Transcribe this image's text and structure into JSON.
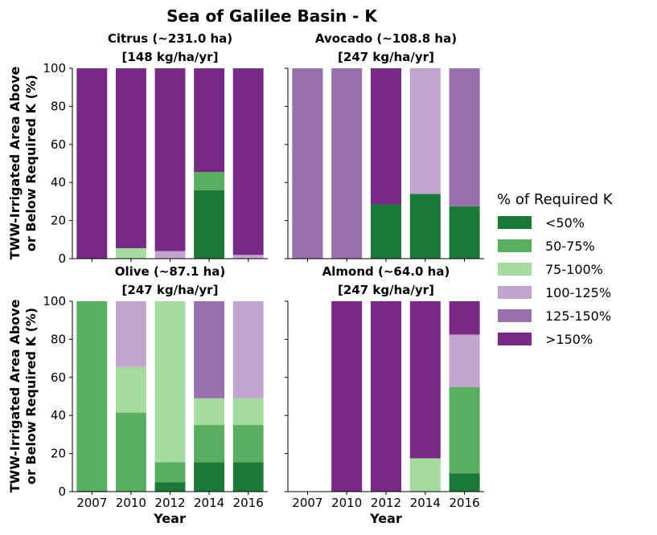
{
  "chart_data": {
    "type": "bar",
    "stacked": true,
    "title": "Sea of Galilee Basin - K",
    "ylabel_line1": "TWW-Irrigated Area Above",
    "ylabel_line2": "or Below Required K (%)",
    "xlabel": "Year",
    "ylim": [
      0,
      100
    ],
    "yticks": [
      0,
      20,
      40,
      60,
      80,
      100
    ],
    "categories": [
      "2007",
      "2010",
      "2012",
      "2014",
      "2016"
    ],
    "legend": {
      "title": "% of Required K",
      "position": "right",
      "entries": [
        {
          "label": "<50%",
          "color": "#1b7837"
        },
        {
          "label": "50-75%",
          "color": "#5aae61"
        },
        {
          "label": "75-100%",
          "color": "#a6dba0"
        },
        {
          "label": "100-125%",
          "color": "#c2a5cf"
        },
        {
          "label": "125-150%",
          "color": "#9970ab"
        },
        {
          "label": ">150%",
          "color": "#762a83"
        }
      ]
    },
    "panels": [
      {
        "name": "citrus",
        "title_line1": "Citrus (~231.0 ha)",
        "title_line2": "[148 kg/ha/yr]",
        "series": [
          {
            "name": "<50%",
            "values": [
              0,
              0,
              0,
              36,
              0
            ]
          },
          {
            "name": "50-75%",
            "values": [
              0,
              0,
              0,
              9.5,
              0
            ]
          },
          {
            "name": "75-100%",
            "values": [
              0,
              5.5,
              0,
              0,
              0
            ]
          },
          {
            "name": "100-125%",
            "values": [
              0,
              0,
              4,
              0,
              2
            ]
          },
          {
            "name": "125-150%",
            "values": [
              0,
              0,
              0,
              0,
              0
            ]
          },
          {
            "name": ">150%",
            "values": [
              100,
              94.5,
              96,
              54.5,
              98
            ]
          }
        ]
      },
      {
        "name": "avocado",
        "title_line1": "Avocado (~108.8 ha)",
        "title_line2": "[247 kg/ha/yr]",
        "series": [
          {
            "name": "<50%",
            "values": [
              0,
              0,
              28.5,
              34,
              27.5
            ]
          },
          {
            "name": "50-75%",
            "values": [
              0,
              0,
              0,
              0,
              0
            ]
          },
          {
            "name": "75-100%",
            "values": [
              0,
              0,
              0,
              0,
              0
            ]
          },
          {
            "name": "100-125%",
            "values": [
              0,
              0,
              0,
              66,
              0
            ]
          },
          {
            "name": "125-150%",
            "values": [
              100,
              100,
              0,
              0,
              72.5
            ]
          },
          {
            "name": ">150%",
            "values": [
              0,
              0,
              71.5,
              0,
              0
            ]
          }
        ]
      },
      {
        "name": "olive",
        "title_line1": "Olive (~87.1 ha)",
        "title_line2": "[247 kg/ha/yr]",
        "series": [
          {
            "name": "<50%",
            "values": [
              0.5,
              0,
              5,
              15.5,
              15.5
            ]
          },
          {
            "name": "50-75%",
            "values": [
              99.5,
              41.5,
              10.5,
              19.5,
              19.5
            ]
          },
          {
            "name": "75-100%",
            "values": [
              0,
              24,
              84.5,
              14,
              14
            ]
          },
          {
            "name": "100-125%",
            "values": [
              0,
              34.5,
              0,
              0,
              51
            ]
          },
          {
            "name": "125-150%",
            "values": [
              0,
              0,
              0,
              51,
              0
            ]
          },
          {
            "name": ">150%",
            "values": [
              0,
              0,
              0,
              0,
              0
            ]
          }
        ]
      },
      {
        "name": "almond",
        "title_line1": "Almond (~64.0 ha)",
        "title_line2": "[247 kg/ha/yr]",
        "series": [
          {
            "name": "<50%",
            "values": [
              0,
              0,
              0,
              0,
              9.5
            ]
          },
          {
            "name": "50-75%",
            "values": [
              0,
              0,
              0,
              0,
              45.5
            ]
          },
          {
            "name": "75-100%",
            "values": [
              0,
              0,
              0,
              17.5,
              0
            ]
          },
          {
            "name": "100-125%",
            "values": [
              0,
              0,
              0,
              0,
              27.5
            ]
          },
          {
            "name": "125-150%",
            "values": [
              0,
              0,
              0,
              0,
              0
            ]
          },
          {
            "name": ">150%",
            "values": [
              0,
              100,
              100,
              82.5,
              17.5
            ]
          }
        ]
      }
    ]
  }
}
